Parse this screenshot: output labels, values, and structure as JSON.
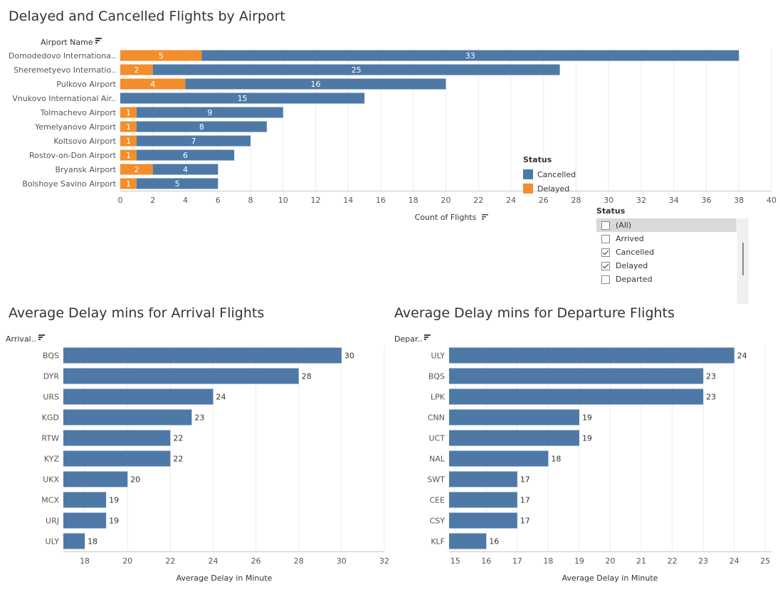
{
  "colors": {
    "cancelled": "#4e79a7",
    "delayed": "#f28e2b",
    "grid": "#ececec",
    "axis": "#c8c8c8"
  },
  "chart_data": [
    {
      "type": "bar",
      "orientation": "horizontal",
      "stacked": true,
      "title": "Delayed and Cancelled Flights by Airport",
      "ylabel": "Airport Name",
      "xlabel": "Count of Flights",
      "categories": [
        "Domodedovo Internationa..",
        "Sheremetyevo Internatio..",
        "Pulkovo Airport",
        "Vnukovo International Air..",
        "Tolmachevo Airport",
        "Yemelyanovo Airport",
        "Koltsovo Airport",
        "Rostov-on-Don Airport",
        "Bryansk Airport",
        "Bolshoye Savino Airport"
      ],
      "series": [
        {
          "name": "Delayed",
          "values": [
            5,
            2,
            4,
            0,
            1,
            1,
            1,
            1,
            2,
            1
          ]
        },
        {
          "name": "Cancelled",
          "values": [
            33,
            25,
            16,
            15,
            9,
            8,
            7,
            6,
            4,
            5
          ]
        }
      ],
      "xlim": [
        0,
        40
      ],
      "xticks": [
        0,
        2,
        4,
        6,
        8,
        10,
        12,
        14,
        16,
        18,
        20,
        22,
        24,
        26,
        28,
        30,
        32,
        34,
        36,
        38,
        40
      ],
      "legend": {
        "title": "Status",
        "items": [
          "Cancelled",
          "Delayed"
        ],
        "placement": "right"
      },
      "grid": true
    },
    {
      "type": "bar",
      "orientation": "horizontal",
      "title": "Average Delay mins for Arrival Flights",
      "ylabel": "Arrival..",
      "xlabel": "Average Delay in Minute",
      "categories": [
        "BQS",
        "DYR",
        "URS",
        "KGD",
        "RTW",
        "KYZ",
        "UKX",
        "MCX",
        "URJ",
        "ULY"
      ],
      "values": [
        30,
        28,
        24,
        23,
        22,
        22,
        20,
        19,
        19,
        18
      ],
      "xlim": [
        17,
        32
      ],
      "xticks": [
        18,
        20,
        22,
        24,
        26,
        28,
        30,
        32
      ],
      "grid": true
    },
    {
      "type": "bar",
      "orientation": "horizontal",
      "title": "Average Delay mins for Departure Flights",
      "ylabel": "Depar..",
      "xlabel": "Average Delay in Minute",
      "categories": [
        "ULY",
        "BQS",
        "LPK",
        "CNN",
        "UCT",
        "NAL",
        "SWT",
        "CEE",
        "CSY",
        "KLF"
      ],
      "values": [
        24,
        23,
        23,
        19,
        19,
        18,
        17,
        17,
        17,
        16
      ],
      "xlim": [
        14.8,
        25.2
      ],
      "xticks": [
        15,
        16,
        17,
        18,
        19,
        20,
        21,
        22,
        23,
        24,
        25
      ],
      "grid": true
    }
  ],
  "filter": {
    "title": "Status",
    "items": [
      {
        "label": "(All)",
        "checked": false
      },
      {
        "label": "Arrived",
        "checked": false
      },
      {
        "label": "Cancelled",
        "checked": true
      },
      {
        "label": "Delayed",
        "checked": true
      },
      {
        "label": "Departed",
        "checked": false
      }
    ]
  }
}
